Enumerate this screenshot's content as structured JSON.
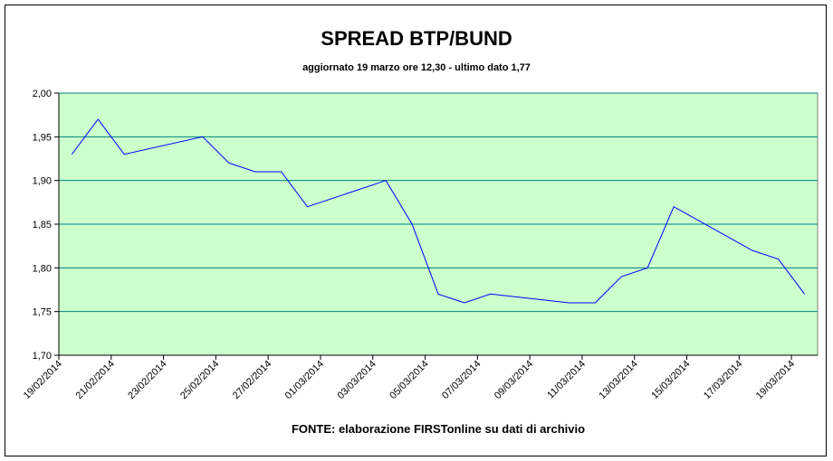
{
  "chart_data": {
    "type": "line",
    "title": "SPREAD BTP/BUND",
    "subtitle": "aggiornato 19 marzo ore 12,30 - ultimo dato 1,77",
    "source": "FONTE: elaborazione FIRSTonline su dati di archivio",
    "x": [
      "19/02/2014",
      "20/02/2014",
      "21/02/2014",
      "24/02/2014",
      "25/02/2014",
      "26/02/2014",
      "27/02/2014",
      "28/02/2014",
      "03/03/2014",
      "04/03/2014",
      "05/03/2014",
      "06/03/2014",
      "07/03/2014",
      "10/03/2014",
      "11/03/2014",
      "12/03/2014",
      "13/03/2014",
      "14/03/2014",
      "17/03/2014",
      "18/03/2014",
      "19/03/2014"
    ],
    "series": [
      {
        "color": "#0000ff",
        "values": [
          1.93,
          1.97,
          1.93,
          1.95,
          1.92,
          1.91,
          1.91,
          1.87,
          1.9,
          1.85,
          1.77,
          1.76,
          1.77,
          1.76,
          1.76,
          1.79,
          1.8,
          1.87,
          1.82,
          1.81,
          1.77
        ]
      }
    ],
    "xlim": [
      "19/02/2014",
      "19/03/2014"
    ],
    "xticks": [
      "19/02/2014",
      "21/02/2014",
      "23/02/2014",
      "25/02/2014",
      "27/02/2014",
      "01/03/2014",
      "03/03/2014",
      "05/03/2014",
      "07/03/2014",
      "09/03/2014",
      "11/03/2014",
      "13/03/2014",
      "15/03/2014",
      "17/03/2014",
      "19/03/2014"
    ],
    "ylim": [
      1.7,
      2.0
    ],
    "yticks": [
      {
        "value": 1.7,
        "label": "1,70"
      },
      {
        "value": 1.75,
        "label": "1,75"
      },
      {
        "value": 1.8,
        "label": "1,80"
      },
      {
        "value": 1.85,
        "label": "1,85"
      },
      {
        "value": 1.9,
        "label": "1,90"
      },
      {
        "value": 1.95,
        "label": "1,95"
      },
      {
        "value": 2.0,
        "label": "2,00"
      }
    ],
    "grid": true,
    "background": "#ccffcc",
    "grid_color": "#008080"
  }
}
